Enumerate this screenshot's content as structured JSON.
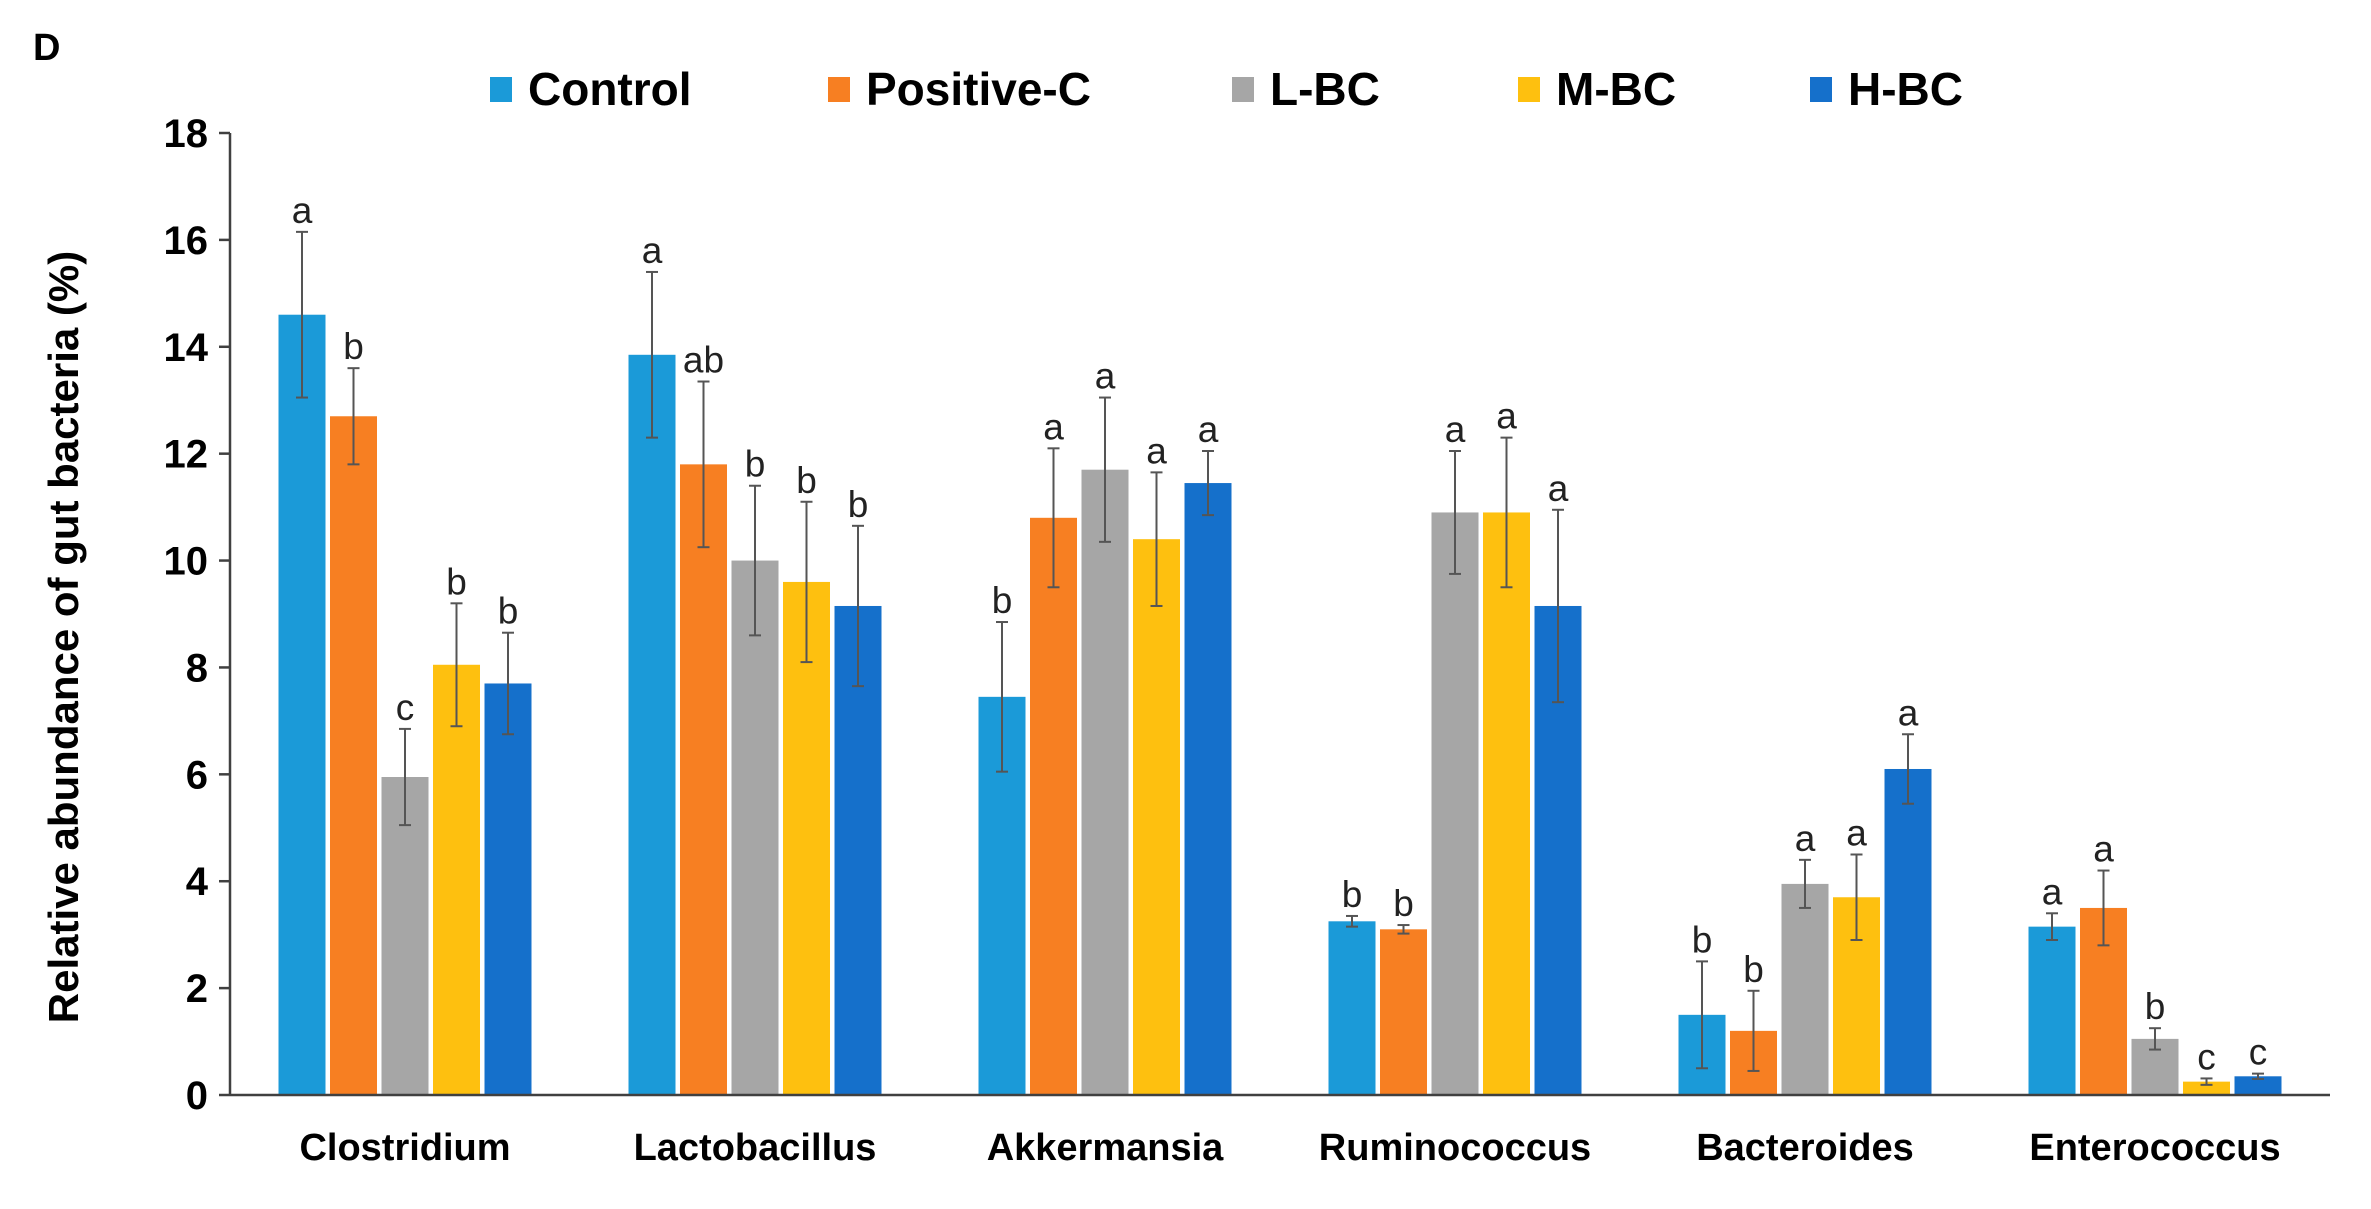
{
  "chart_data": {
    "type": "bar",
    "panel_label": "D",
    "title": "",
    "xlabel": "",
    "ylabel": "Relative abundance of gut bacteria (%)",
    "ylim": [
      0,
      18
    ],
    "yticks": [
      0,
      2,
      4,
      6,
      8,
      10,
      12,
      14,
      16,
      18
    ],
    "legend_position": "top",
    "categories": [
      "Clostridium",
      "Lactobacillus",
      "Akkermansia",
      "Ruminococcus",
      "Bacteroides",
      "Enterococcus"
    ],
    "series": [
      {
        "name": "Control",
        "color": "#1b9ad8",
        "values": [
          14.6,
          13.85,
          7.45,
          3.25,
          1.5,
          3.15
        ],
        "errors": [
          1.55,
          1.55,
          1.4,
          0.1,
          1.0,
          0.25
        ],
        "letters": [
          "a",
          "a",
          "b",
          "b",
          "b",
          "a"
        ]
      },
      {
        "name": "Positive-C",
        "color": "#f77f22",
        "values": [
          12.7,
          11.8,
          10.8,
          3.1,
          1.2,
          3.5
        ],
        "errors": [
          0.9,
          1.55,
          1.3,
          0.08,
          0.75,
          0.7
        ],
        "letters": [
          "b",
          "ab",
          "a",
          "b",
          "b",
          "a"
        ]
      },
      {
        "name": "L-BC",
        "color": "#a6a6a6",
        "values": [
          5.95,
          10.0,
          11.7,
          10.9,
          3.95,
          1.05
        ],
        "errors": [
          0.9,
          1.4,
          1.35,
          1.15,
          0.45,
          0.2
        ],
        "letters": [
          "c",
          "b",
          "a",
          "a",
          "a",
          "b"
        ]
      },
      {
        "name": "M-BC",
        "color": "#fec00f",
        "values": [
          8.05,
          9.6,
          10.4,
          10.9,
          3.7,
          0.25
        ],
        "errors": [
          1.15,
          1.5,
          1.25,
          1.4,
          0.8,
          0.06
        ],
        "letters": [
          "b",
          "b",
          "a",
          "a",
          "a",
          "c"
        ]
      },
      {
        "name": "H-BC",
        "color": "#1570cb",
        "values": [
          7.7,
          9.15,
          11.45,
          9.15,
          6.1,
          0.35
        ],
        "errors": [
          0.95,
          1.5,
          0.6,
          1.8,
          0.65,
          0.05
        ],
        "letters": [
          "b",
          "b",
          "a",
          "a",
          "a",
          "c"
        ]
      }
    ]
  }
}
